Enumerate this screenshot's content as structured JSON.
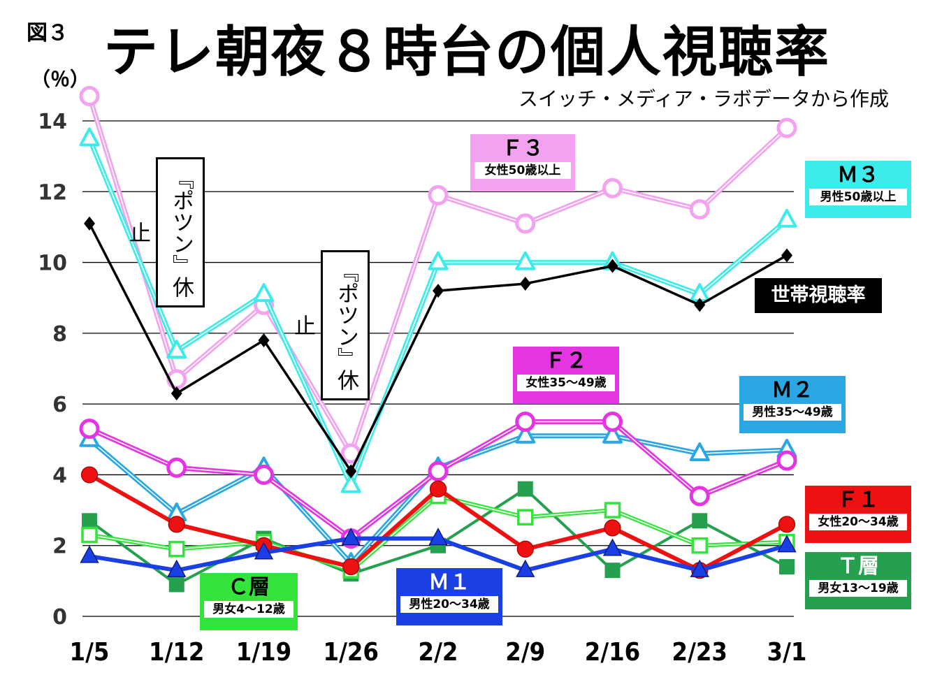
{
  "figure_label": "図３",
  "unit": "（％）",
  "source": "スイッチ・メディア・ラボデータから作成",
  "notes": [
    "『ポツン』休止",
    "『ポツン』休止"
  ],
  "colors": {
    "household": "#000000",
    "F3": "#f2a2ef",
    "M3": "#3cebea",
    "F2": "#e535e2",
    "M2": "#2aa6e3",
    "F1": "#ee1111",
    "T": "#24a04f",
    "C": "#34e33b",
    "M1": "#1a3fe3"
  },
  "chart_data": {
    "type": "line",
    "title": "テレ朝夜８時台の個人視聴率",
    "xlabel": "",
    "ylabel": "（％）",
    "x": [
      "1/5",
      "1/12",
      "1/19",
      "1/26",
      "2/2",
      "2/9",
      "2/16",
      "2/23",
      "3/1"
    ],
    "ylim": [
      0,
      14
    ],
    "yticks": [
      0,
      2,
      4,
      6,
      8,
      10,
      12,
      14
    ],
    "grid": true,
    "series": [
      {
        "key": "F3",
        "name": "Ｆ３",
        "sub": "女性50歳以上",
        "marker": "circle-open",
        "values": [
          14.7,
          6.7,
          8.8,
          4.6,
          11.9,
          11.1,
          12.1,
          11.5,
          13.8
        ]
      },
      {
        "key": "M3",
        "name": "Ｍ３",
        "sub": "男性50歳以上",
        "marker": "triangle-open",
        "values": [
          13.5,
          7.5,
          9.1,
          3.7,
          10.0,
          10.0,
          10.0,
          9.1,
          11.2
        ]
      },
      {
        "key": "household",
        "name": "世帯視聴率",
        "marker": "diamond",
        "values": [
          11.1,
          6.3,
          7.8,
          4.1,
          9.2,
          9.4,
          9.9,
          8.8,
          10.2
        ]
      },
      {
        "key": "F2",
        "name": "Ｆ２",
        "sub": "女性35〜49歳",
        "marker": "circle-open",
        "values": [
          5.3,
          4.2,
          4.0,
          2.2,
          4.1,
          5.5,
          5.5,
          3.4,
          4.4
        ]
      },
      {
        "key": "M2",
        "name": "Ｍ２",
        "sub": "男性35〜49歳",
        "marker": "triangle-open",
        "values": [
          5.0,
          2.9,
          4.2,
          1.5,
          4.2,
          5.1,
          5.1,
          4.6,
          4.7
        ]
      },
      {
        "key": "T",
        "name": "Ｔ層",
        "sub": "男女13〜19歳",
        "marker": "square",
        "values": [
          2.7,
          0.9,
          2.2,
          1.2,
          2.0,
          3.6,
          1.3,
          2.7,
          1.4
        ]
      },
      {
        "key": "C",
        "name": "Ｃ層",
        "sub": "男女4〜12歳",
        "marker": "square-open",
        "values": [
          2.3,
          1.9,
          2.1,
          1.3,
          3.4,
          2.8,
          3.0,
          2.0,
          2.1
        ]
      },
      {
        "key": "F1",
        "name": "Ｆ１",
        "sub": "女性20〜34歳",
        "marker": "circle",
        "values": [
          4.0,
          2.6,
          2.0,
          1.4,
          3.6,
          1.9,
          2.5,
          1.3,
          2.6
        ]
      },
      {
        "key": "M1",
        "name": "Ｍ１",
        "sub": "男性20〜34歳",
        "marker": "triangle",
        "values": [
          1.7,
          1.3,
          1.8,
          2.2,
          2.2,
          1.3,
          1.9,
          1.3,
          2.0
        ]
      }
    ]
  }
}
